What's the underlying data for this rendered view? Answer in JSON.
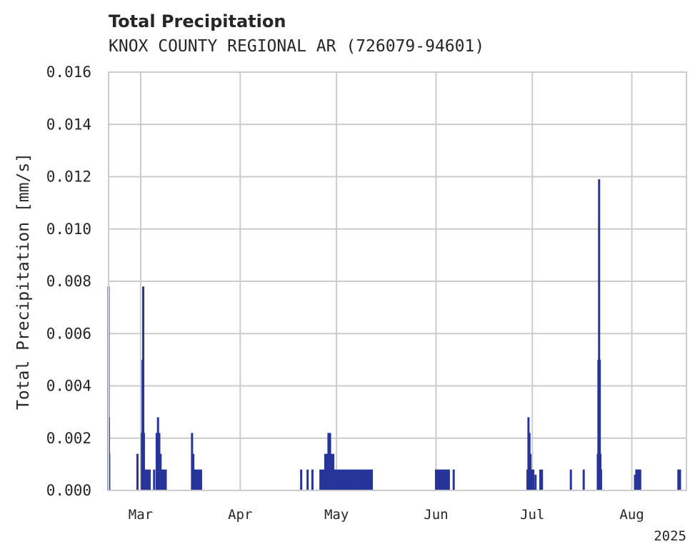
{
  "chart_data": {
    "type": "bar",
    "title": "Total Precipitation",
    "subtitle": "KNOX COUNTY REGIONAL AR (726079-94601)",
    "xlabel": "",
    "ylabel": "Total Precipitation [mm/s]",
    "ylim": [
      0,
      0.016
    ],
    "yticks": [
      "0.000",
      "0.002",
      "0.004",
      "0.006",
      "0.008",
      "0.010",
      "0.012",
      "0.014",
      "0.016"
    ],
    "x_range_days": [
      -10,
      170
    ],
    "xticks": [
      {
        "label": "Mar",
        "day": 0
      },
      {
        "label": "Apr",
        "day": 31
      },
      {
        "label": "May",
        "day": 61
      },
      {
        "label": "Jun",
        "day": 92
      },
      {
        "label": "Jul",
        "day": 122
      },
      {
        "label": "Aug",
        "day": 153
      }
    ],
    "year_label": "2025",
    "bar_color": "#27349a",
    "note": "x = days since Mar 1 2025, y = precipitation rate in mm/s",
    "points": [
      [
        -10.0,
        0.0078
      ],
      [
        -9.9,
        0.0028
      ],
      [
        -9.8,
        0.0014
      ],
      [
        -1.0,
        0.0014
      ],
      [
        0.4,
        0.0022
      ],
      [
        0.6,
        0.005
      ],
      [
        0.8,
        0.0078
      ],
      [
        1.0,
        0.0022
      ],
      [
        1.6,
        0.0008
      ],
      [
        2.2,
        0.0008
      ],
      [
        2.8,
        0.0008
      ],
      [
        4.2,
        0.0008
      ],
      [
        5.0,
        0.0022
      ],
      [
        5.4,
        0.0028
      ],
      [
        5.8,
        0.0022
      ],
      [
        6.2,
        0.0014
      ],
      [
        6.6,
        0.0008
      ],
      [
        7.0,
        0.0008
      ],
      [
        7.4,
        0.0008
      ],
      [
        7.8,
        0.0008
      ],
      [
        16.0,
        0.0022
      ],
      [
        16.4,
        0.0014
      ],
      [
        16.8,
        0.0008
      ],
      [
        17.2,
        0.0008
      ],
      [
        17.6,
        0.0008
      ],
      [
        18.0,
        0.0008
      ],
      [
        18.4,
        0.0008
      ],
      [
        18.8,
        0.0008
      ],
      [
        50.0,
        0.0008
      ],
      [
        52.0,
        0.0008
      ],
      [
        53.5,
        0.0008
      ],
      [
        56.0,
        0.0008
      ],
      [
        56.5,
        0.0008
      ],
      [
        57.0,
        0.0008
      ],
      [
        57.5,
        0.0014
      ],
      [
        58.0,
        0.0014
      ],
      [
        58.5,
        0.0022
      ],
      [
        59.0,
        0.0022
      ],
      [
        59.5,
        0.0014
      ],
      [
        60.0,
        0.0014
      ],
      [
        60.5,
        0.0008
      ],
      [
        61.0,
        0.0008
      ],
      [
        61.5,
        0.0008
      ],
      [
        62.0,
        0.0008
      ],
      [
        62.5,
        0.0008
      ],
      [
        63.0,
        0.0008
      ],
      [
        63.5,
        0.0008
      ],
      [
        64.0,
        0.0008
      ],
      [
        64.5,
        0.0008
      ],
      [
        65.0,
        0.0008
      ],
      [
        65.5,
        0.0008
      ],
      [
        66.0,
        0.0008
      ],
      [
        66.5,
        0.0008
      ],
      [
        67.0,
        0.0008
      ],
      [
        67.5,
        0.0008
      ],
      [
        68.0,
        0.0008
      ],
      [
        68.5,
        0.0008
      ],
      [
        69.0,
        0.0008
      ],
      [
        69.5,
        0.0008
      ],
      [
        70.0,
        0.0008
      ],
      [
        70.5,
        0.0008
      ],
      [
        71.0,
        0.0008
      ],
      [
        71.5,
        0.0008
      ],
      [
        72.0,
        0.0008
      ],
      [
        92.0,
        0.0008
      ],
      [
        92.5,
        0.0008
      ],
      [
        93.0,
        0.0008
      ],
      [
        93.5,
        0.0008
      ],
      [
        94.0,
        0.0008
      ],
      [
        94.5,
        0.0008
      ],
      [
        95.0,
        0.0008
      ],
      [
        95.5,
        0.0008
      ],
      [
        96.0,
        0.0008
      ],
      [
        97.5,
        0.0008
      ],
      [
        120.5,
        0.0008
      ],
      [
        120.8,
        0.0028
      ],
      [
        121.1,
        0.0022
      ],
      [
        121.4,
        0.0014
      ],
      [
        121.8,
        0.0008
      ],
      [
        122.3,
        0.0008
      ],
      [
        123.0,
        0.0006
      ],
      [
        124.5,
        0.0008
      ],
      [
        125.0,
        0.0008
      ],
      [
        134.0,
        0.0008
      ],
      [
        138.0,
        0.0008
      ],
      [
        142.4,
        0.0014
      ],
      [
        142.6,
        0.005
      ],
      [
        142.8,
        0.0119
      ],
      [
        143.0,
        0.005
      ],
      [
        143.2,
        0.0014
      ],
      [
        143.4,
        0.0008
      ],
      [
        154.0,
        0.0006
      ],
      [
        154.4,
        0.0008
      ],
      [
        154.8,
        0.0008
      ],
      [
        155.2,
        0.0008
      ],
      [
        155.6,
        0.0008
      ],
      [
        167.5,
        0.0008
      ],
      [
        168.0,
        0.0008
      ]
    ]
  }
}
